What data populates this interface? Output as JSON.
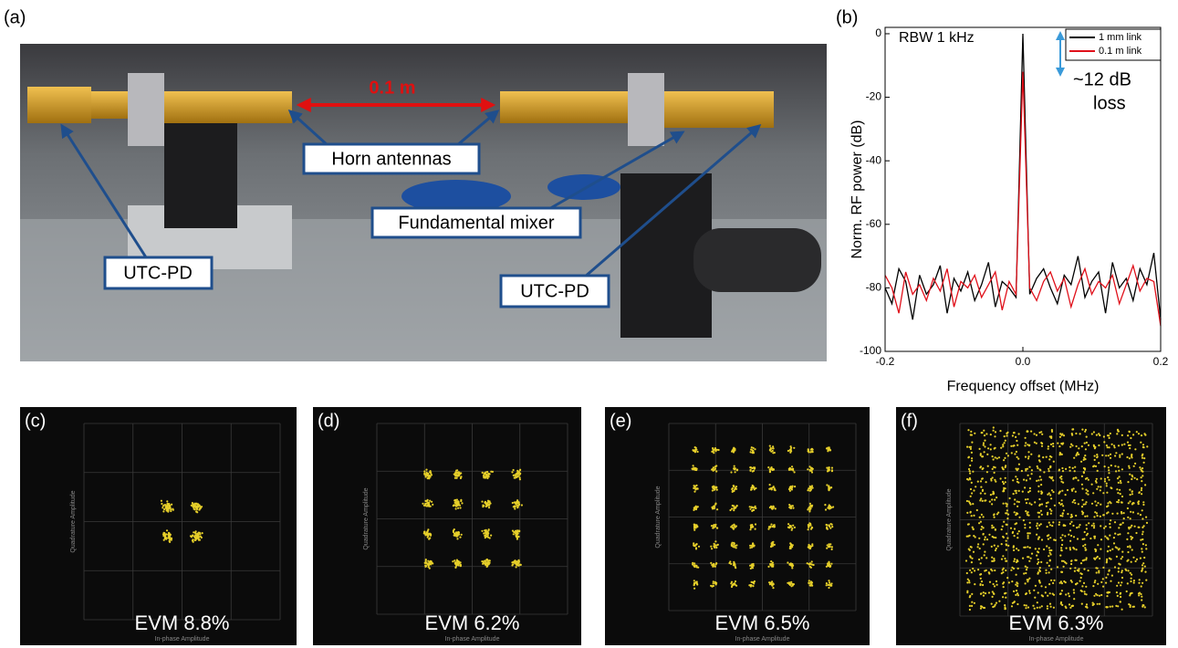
{
  "panel_labels": [
    "(a)",
    "(b)",
    "(c)",
    "(d)",
    "(e)",
    "(f)"
  ],
  "photo": {
    "distance_label": "0.1 m",
    "callouts": [
      "Horn antennas",
      "Fundamental mixer",
      "UTC-PD",
      "UTC-PD"
    ]
  },
  "chart_data": {
    "type": "line",
    "x_label": "Frequency offset (MHz)",
    "y_label": "Norm. RF power (dB)",
    "annotations": [
      "RBW 1 kHz",
      "~12 dB",
      "loss"
    ],
    "x": [
      -0.2,
      -0.19,
      -0.18,
      -0.17,
      -0.16,
      -0.15,
      -0.14,
      -0.13,
      -0.12,
      -0.11,
      -0.1,
      -0.09,
      -0.08,
      -0.07,
      -0.06,
      -0.05,
      -0.04,
      -0.03,
      -0.02,
      -0.01,
      0,
      0.01,
      0.02,
      0.03,
      0.04,
      0.05,
      0.06,
      0.07,
      0.08,
      0.09,
      0.1,
      0.11,
      0.12,
      0.13,
      0.14,
      0.15,
      0.16,
      0.17,
      0.18,
      0.19,
      0.2
    ],
    "series": [
      {
        "name": "1 mm link",
        "color": "#000000",
        "values": [
          -80,
          -85,
          -74,
          -78,
          -90,
          -76,
          -82,
          -79,
          -73,
          -88,
          -77,
          -81,
          -75,
          -84,
          -79,
          -72,
          -86,
          -78,
          -80,
          -83,
          0,
          -82,
          -77,
          -74,
          -80,
          -85,
          -76,
          -79,
          -70,
          -83,
          -78,
          -75,
          -88,
          -72,
          -80,
          -77,
          -84,
          -74,
          -79,
          -69,
          -90
        ]
      },
      {
        "name": "0.1 m link",
        "color": "#e0101a",
        "values": [
          -76,
          -80,
          -88,
          -75,
          -82,
          -79,
          -84,
          -77,
          -81,
          -74,
          -86,
          -78,
          -80,
          -76,
          -83,
          -79,
          -75,
          -87,
          -78,
          -82,
          -12,
          -80,
          -84,
          -78,
          -75,
          -81,
          -77,
          -86,
          -79,
          -74,
          -82,
          -78,
          -80,
          -76,
          -85,
          -79,
          -73,
          -81,
          -77,
          -78,
          -92
        ]
      }
    ],
    "xlim": [
      -0.2,
      0.2
    ],
    "xticks": [
      -0.2,
      {
        "value": 0,
        "label": "0.0"
      },
      0.2
    ],
    "ylim": [
      -100,
      2
    ],
    "yticks": [
      0,
      -20,
      -40,
      -60,
      -80,
      -100
    ],
    "legend": "upper right"
  },
  "constellations": [
    {
      "evm": "EVM 8.8%",
      "x_label": "In-phase Amplitude",
      "y_label": "Quadrature Amplitude"
    },
    {
      "evm": "EVM 6.2%",
      "x_label": "In-phase Amplitude",
      "y_label": "Quadrature Amplitude"
    },
    {
      "evm": "EVM 6.5%",
      "x_label": "In-phase Amplitude",
      "y_label": "Quadrature Amplitude"
    },
    {
      "evm": "EVM 6.3%",
      "x_label": "In-phase Amplitude",
      "y_label": "Quadrature Amplitude"
    }
  ]
}
